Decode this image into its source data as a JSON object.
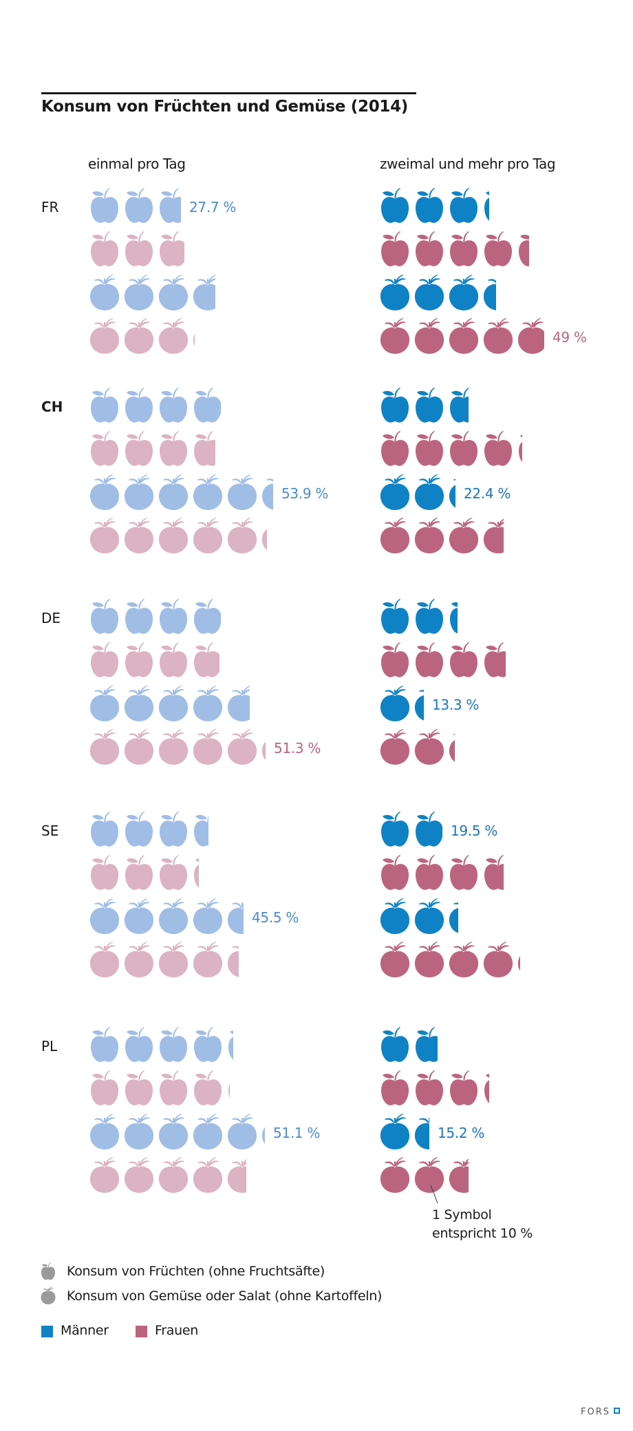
{
  "chart_data": {
    "type": "pictogram",
    "title": "Konsum von Früchten und Gemüse (2014)",
    "unit_note": [
      "1 Symbol",
      "entspricht 10 %"
    ],
    "units_per_symbol": 10,
    "columns": [
      "einmal pro Tag",
      "zweimal und mehr pro Tag"
    ],
    "row_order": [
      "Früchte Männer",
      "Früchte Frauen",
      "Gemüse Männer",
      "Gemüse Frauen"
    ],
    "countries": [
      {
        "name": "FR",
        "bold": false,
        "einmal": {
          "fruit_men": 27.7,
          "fruit_women": 28.8,
          "veg_men": 37.6,
          "veg_women": 30.8
        },
        "zweimal": {
          "fruit_men": 32,
          "fruit_women": 44,
          "veg_men": 34.4,
          "veg_women": 49
        },
        "labels": [
          {
            "col": "einmal",
            "row": "fruit_men",
            "text": "27.7 %"
          },
          {
            "col": "zweimal",
            "row": "veg_women",
            "text": "49 %"
          }
        ]
      },
      {
        "name": "CH",
        "bold": true,
        "einmal": {
          "fruit_men": 39.6,
          "fruit_women": 37.7,
          "veg_men": 53.9,
          "veg_women": 51.9
        },
        "zweimal": {
          "fruit_men": 26.8,
          "fruit_women": 41.7,
          "veg_men": 22.4,
          "veg_women": 37
        },
        "labels": [
          {
            "col": "einmal",
            "row": "veg_men",
            "text": "53.9 %"
          },
          {
            "col": "zweimal",
            "row": "veg_men",
            "text": "22.4 %"
          }
        ]
      },
      {
        "name": "DE",
        "bold": false,
        "einmal": {
          "fruit_men": 39.5,
          "fruit_women": 39,
          "veg_men": 47.6,
          "veg_women": 51.3
        },
        "zweimal": {
          "fruit_men": 23,
          "fruit_women": 37.7,
          "veg_men": 13.3,
          "veg_women": 22
        },
        "labels": [
          {
            "col": "einmal",
            "row": "veg_women",
            "text": "51.3 %"
          },
          {
            "col": "zweimal",
            "row": "veg_men",
            "text": "13.3 %"
          }
        ]
      },
      {
        "name": "SE",
        "bold": false,
        "einmal": {
          "fruit_men": 35.3,
          "fruit_women": 32,
          "veg_men": 45.5,
          "veg_women": 44
        },
        "zweimal": {
          "fruit_men": 19.5,
          "fruit_women": 36.9,
          "veg_men": 23.2,
          "veg_women": 41
        },
        "labels": [
          {
            "col": "einmal",
            "row": "veg_men",
            "text": "45.5 %"
          },
          {
            "col": "zweimal",
            "row": "fruit_men",
            "text": "19.5 %"
          }
        ]
      },
      {
        "name": "PL",
        "bold": false,
        "einmal": {
          "fruit_men": 42,
          "fruit_women": 41,
          "veg_men": 51.1,
          "veg_women": 46.5
        },
        "zweimal": {
          "fruit_men": 18,
          "fruit_women": 32,
          "veg_men": 15.2,
          "veg_women": 26.8
        },
        "labels": [
          {
            "col": "einmal",
            "row": "veg_men",
            "text": "51.1 %"
          },
          {
            "col": "zweimal",
            "row": "veg_men",
            "text": "15.2 %"
          }
        ]
      }
    ],
    "legend": {
      "symbols": [
        {
          "icon": "apple-icon",
          "label": "Konsum von Früchten (ohne Fruchtsäfte)"
        },
        {
          "icon": "tomato-icon",
          "label": "Konsum von Gemüse oder Salat (ohne Kartoffeln)"
        }
      ],
      "genders": [
        {
          "label": "Männer",
          "color": "#0f82c5"
        },
        {
          "label": "Frauen",
          "color": "#bb6480"
        }
      ]
    },
    "colors": {
      "einmal_men": "#a0bde6",
      "einmal_women": "#dcb3c2",
      "zweimal_men": "#0f82c5",
      "zweimal_women": "#bb6480",
      "label_einmal_men": "#4a8ad4",
      "label_einmal_women": "#bb6480",
      "label_zweimal_men": "#1b74c0",
      "label_zweimal_women": "#bb6480",
      "legend_icon": "#9a9a9a"
    }
  },
  "footer": {
    "logo_text": "FORS"
  }
}
